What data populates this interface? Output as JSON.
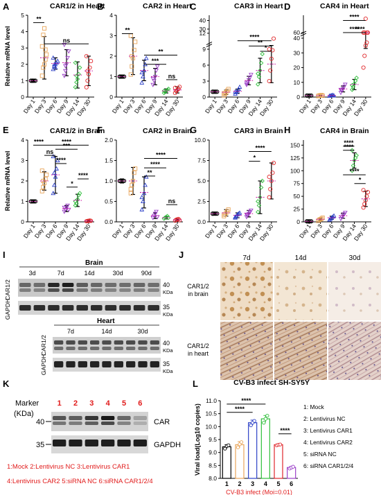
{
  "panel_letters": [
    "A",
    "B",
    "C",
    "D",
    "E",
    "F",
    "G",
    "H",
    "I",
    "J",
    "K",
    "L"
  ],
  "colors": {
    "day1": "#000000",
    "day3": "#e8a55a",
    "day6": "#2b3fc7",
    "day9": "#9b3fc9",
    "day14": "#2fbf3b",
    "day30": "#e0262a",
    "mean": "#cc1fa8",
    "red_text": "#e11b1b"
  },
  "common_x_categories": [
    "Day 1",
    "Day 3",
    "Day 6",
    "Day 9",
    "Day 14",
    "Day 30"
  ],
  "ylabel_relative": "Relative mRNA level",
  "chart_data": [
    {
      "panel": "A",
      "type": "scatter",
      "title": "CAR1/2 in Heart",
      "ylabel": "Relative mRNA level",
      "ylim": [
        0,
        5
      ],
      "yticks": [
        "0",
        "1",
        "2",
        "3",
        "4",
        "5"
      ],
      "categories": [
        "Day 1",
        "Day 3",
        "Day 6",
        "Day 9",
        "Day 14",
        "Day 30"
      ],
      "means": [
        1.0,
        2.4,
        2.05,
        2.1,
        1.35,
        1.6
      ],
      "sd": [
        0.05,
        1.3,
        0.35,
        0.8,
        0.8,
        0.9
      ],
      "points": [
        [
          1,
          1,
          1,
          1,
          1,
          1,
          1,
          1
        ],
        [
          1.3,
          1.8,
          2.0,
          2.3,
          2.6,
          3.1,
          3.8,
          4.2,
          2.9
        ],
        [
          1.7,
          1.9,
          2.0,
          2.1,
          2.2,
          2.4,
          2.0,
          1.8
        ],
        [
          1.3,
          1.6,
          2.0,
          2.4,
          2.8,
          3.2,
          1.9
        ],
        [
          0.6,
          0.9,
          1.1,
          1.4,
          1.8,
          2.1,
          1.3
        ],
        [
          0.6,
          1.0,
          1.4,
          1.8,
          2.2,
          2.5,
          1.6
        ]
      ],
      "sig": [
        {
          "from": 0,
          "to": 1,
          "label": "**",
          "y": 4.55
        },
        {
          "from": 1,
          "to": 5,
          "label": "ns",
          "y": 3.25
        }
      ]
    },
    {
      "panel": "B",
      "type": "scatter",
      "title": "CAR2 in Heart",
      "ylim": [
        0,
        4
      ],
      "yticks": [
        "0",
        "1",
        "2",
        "3",
        "4"
      ],
      "categories": [
        "Day 1",
        "Day 3",
        "Day 6",
        "Day 9",
        "Day 14",
        "Day 30"
      ],
      "means": [
        1.0,
        2.0,
        1.3,
        1.0,
        0.3,
        0.35
      ],
      "sd": [
        0.05,
        0.9,
        0.5,
        0.4,
        0.1,
        0.15
      ],
      "points": [
        [
          1,
          1,
          1,
          1,
          1,
          1,
          1
        ],
        [
          1.1,
          1.5,
          1.9,
          2.3,
          2.7,
          3.0,
          2.0
        ],
        [
          0.7,
          1.0,
          1.3,
          1.6,
          1.9,
          1.2
        ],
        [
          0.6,
          0.8,
          1.0,
          1.3,
          1.5,
          0.9
        ],
        [
          0.2,
          0.25,
          0.3,
          0.35,
          0.4,
          0.3
        ],
        [
          0.2,
          0.3,
          0.35,
          0.4,
          0.5,
          0.45
        ]
      ],
      "sig": [
        {
          "from": 0,
          "to": 1,
          "label": "**",
          "y": 3.1
        },
        {
          "from": 2,
          "to": 5,
          "label": "**",
          "y": 2.05
        },
        {
          "from": 2,
          "to": 4,
          "label": "***",
          "y": 1.6
        },
        {
          "from": 4,
          "to": 5,
          "label": "ns",
          "y": 0.85
        }
      ]
    },
    {
      "panel": "C",
      "type": "scatter",
      "title": "CAR3 in Heart",
      "ylim": [
        0,
        46
      ],
      "yticks": [
        "0",
        "3",
        "6",
        "9",
        "12",
        "30",
        "40"
      ],
      "broken_axis": true,
      "categories": [
        "Day 1",
        "Day 3",
        "Day 6",
        "Day 9",
        "Day 14",
        "Day 30"
      ],
      "means": [
        1.0,
        0.9,
        1.1,
        3.1,
        5.0,
        6.2
      ],
      "sd": [
        0.05,
        0.4,
        0.4,
        0.8,
        2.3,
        3.5
      ],
      "points": [
        [
          1,
          1,
          1,
          1,
          1,
          1
        ],
        [
          0.3,
          0.6,
          0.9,
          1.2,
          1.5,
          0.7
        ],
        [
          0.6,
          0.9,
          1.2,
          1.5,
          1.9,
          1.0
        ],
        [
          2.3,
          2.8,
          3.2,
          3.7,
          4.2,
          2.6
        ],
        [
          2.4,
          3.8,
          5.0,
          6.4,
          8.1,
          4.4
        ],
        [
          3.0,
          5.0,
          7.2,
          8.8,
          11.0,
          9.0
        ]
      ],
      "sig": [
        {
          "from": 2,
          "to": 5,
          "label": "****",
          "y": 10.6
        },
        {
          "from": 3,
          "to": 5,
          "label": "**",
          "y": 9.6
        },
        {
          "from": 4,
          "to": 5,
          "label": "*",
          "y": 8.6
        }
      ]
    },
    {
      "panel": "D",
      "type": "scatter",
      "title": "CAR4 in Heart",
      "ylim": [
        0,
        65
      ],
      "yticks": [
        "0",
        "10",
        "20",
        "30",
        "40",
        "60"
      ],
      "broken_axis": true,
      "categories": [
        "Day 1",
        "Day 3",
        "Day 6",
        "Day 9",
        "Day 14",
        "Day 30"
      ],
      "means": [
        1.0,
        1.0,
        1.1,
        5.5,
        8.5,
        45
      ],
      "sd": [
        0.05,
        0.3,
        0.3,
        2.0,
        3.5,
        12
      ],
      "points": [
        [
          1,
          1,
          1,
          1,
          1,
          1
        ],
        [
          0.7,
          1.0,
          1.2,
          1.3,
          0.9
        ],
        [
          0.8,
          1.0,
          1.2,
          1.4,
          1.0
        ],
        [
          3.0,
          4.5,
          5.5,
          7.0,
          8.5,
          5.0
        ],
        [
          5,
          7,
          9,
          11,
          13,
          8
        ],
        [
          20,
          28,
          35,
          42,
          50,
          55,
          60,
          64,
          37
        ]
      ],
      "sig": [
        {
          "from": 3,
          "to": 5,
          "label": "****",
          "y": 63.5
        },
        {
          "from": 4,
          "to": 5,
          "label": "****",
          "y": 59.5
        },
        {
          "from": 3,
          "to": 5,
          "label": "****",
          "y": 55.5
        }
      ]
    },
    {
      "panel": "E",
      "type": "scatter",
      "title": "CAR1/2 in Brain",
      "ylabel": "Relative mRNA level",
      "ylim": [
        0,
        4
      ],
      "yticks": [
        "0",
        "1",
        "2",
        "3",
        "4"
      ],
      "categories": [
        "Day 1",
        "Day 3",
        "Day 6",
        "Day 9",
        "Day 14",
        "Day 30"
      ],
      "means": [
        1.0,
        2.0,
        2.3,
        0.65,
        1.05,
        0.05
      ],
      "sd": [
        0.05,
        0.45,
        0.9,
        0.15,
        0.3,
        0.02
      ],
      "points": [
        [
          1,
          1,
          1,
          1,
          1,
          1
        ],
        [
          1.5,
          1.7,
          1.9,
          2.1,
          2.3,
          2.5,
          2.0
        ],
        [
          1.4,
          1.8,
          2.2,
          2.6,
          3.0,
          3.2,
          2.4
        ],
        [
          0.5,
          0.6,
          0.7,
          0.8,
          0.6,
          0.7
        ],
        [
          0.8,
          0.9,
          1.1,
          1.3,
          1.4,
          1.0
        ],
        [
          0.03,
          0.04,
          0.05,
          0.06,
          0.05
        ]
      ],
      "sig": [
        {
          "from": 0,
          "to": 1,
          "label": "****",
          "y": 3.75
        },
        {
          "from": 1,
          "to": 2,
          "label": "ns",
          "y": 3.25
        },
        {
          "from": 2,
          "to": 3,
          "label": "****",
          "y": 2.85
        },
        {
          "from": 1,
          "to": 5,
          "label": "****",
          "y": 3.75
        },
        {
          "from": 2,
          "to": 4,
          "label": "***",
          "y": 3.55
        },
        {
          "from": 3,
          "to": 4,
          "label": "*",
          "y": 1.7
        },
        {
          "from": 4,
          "to": 5,
          "label": "****",
          "y": 2.1
        }
      ]
    },
    {
      "panel": "F",
      "type": "scatter",
      "title": "CAR2 in Brain",
      "ylim": [
        0,
        2.0
      ],
      "yticks": [
        "0.0",
        "0.5",
        "1.0",
        "1.5",
        "2.0"
      ],
      "categories": [
        "Day 1",
        "Day 3",
        "Day 6",
        "Day 9",
        "Day 14",
        "Day 30"
      ],
      "means": [
        1.0,
        1.0,
        0.72,
        0.15,
        0.1,
        0.05
      ],
      "sd": [
        0.05,
        0.33,
        0.38,
        0.07,
        0.03,
        0.02
      ],
      "points": [
        [
          1,
          1,
          1,
          1,
          1,
          1
        ],
        [
          0.7,
          0.9,
          1.0,
          1.2,
          1.3,
          0.8
        ],
        [
          0.3,
          0.5,
          0.7,
          0.9,
          1.1,
          0.6
        ],
        [
          0.1,
          0.15,
          0.2,
          0.25,
          0.12
        ],
        [
          0.08,
          0.1,
          0.12,
          0.14,
          0.1
        ],
        [
          0.03,
          0.05,
          0.06,
          0.07,
          0.04
        ]
      ],
      "sig": [
        {
          "from": 2,
          "to": 5,
          "label": "****",
          "y": 1.55
        },
        {
          "from": 2,
          "to": 4,
          "label": "****",
          "y": 1.32
        },
        {
          "from": 2,
          "to": 3,
          "label": "**",
          "y": 1.12
        },
        {
          "from": 4,
          "to": 5,
          "label": "ns",
          "y": 0.42
        }
      ]
    },
    {
      "panel": "G",
      "type": "scatter",
      "title": "CAR3 in Brain",
      "ylim": [
        0,
        10
      ],
      "yticks": [
        "0.0",
        "2.5",
        "5.0",
        "7.5",
        "10.0"
      ],
      "categories": [
        "Day 1",
        "Day 3",
        "Day 6",
        "Day 9",
        "Day 14",
        "Day 30"
      ],
      "means": [
        1.0,
        1.1,
        0.8,
        1.0,
        3.0,
        5.0
      ],
      "sd": [
        0.05,
        0.4,
        0.3,
        0.4,
        2.0,
        2.2
      ],
      "points": [
        [
          1,
          1,
          1,
          1,
          1,
          1
        ],
        [
          0.7,
          0.9,
          1.1,
          1.3,
          1.5,
          0.9
        ],
        [
          0.5,
          0.7,
          0.9,
          1.0,
          1.1,
          0.6
        ],
        [
          0.6,
          0.8,
          1.0,
          1.2,
          1.4,
          0.9
        ],
        [
          1.2,
          2.0,
          3.0,
          4.2,
          5.0,
          2.5
        ],
        [
          3.0,
          4.0,
          5.0,
          6.0,
          7.2,
          5.5
        ]
      ],
      "sig": [
        {
          "from": 3,
          "to": 5,
          "label": "****",
          "y": 8.6
        },
        {
          "from": 3,
          "to": 4,
          "label": "*",
          "y": 7.4
        }
      ]
    },
    {
      "panel": "H",
      "type": "scatter",
      "title": "CAR4 in Brain",
      "ylim": [
        0,
        160
      ],
      "yticks": [
        "0",
        "25",
        "50",
        "75",
        "100",
        "125",
        "150"
      ],
      "categories": [
        "Day 1",
        "Day 3",
        "Day 6",
        "Day 9",
        "Day 14",
        "Day 30"
      ],
      "means": [
        1.0,
        5.0,
        8.0,
        12.0,
        120,
        45
      ],
      "sd": [
        0.05,
        2.0,
        3.0,
        5.0,
        15,
        15
      ],
      "points": [
        [
          1,
          1,
          1,
          1,
          1,
          1
        ],
        [
          2,
          4,
          5,
          6,
          8
        ],
        [
          4,
          6,
          8,
          10,
          12
        ],
        [
          6,
          9,
          12,
          15,
          18
        ],
        [
          100,
          110,
          120,
          125,
          130,
          140
        ],
        [
          28,
          35,
          42,
          50,
          58,
          62
        ]
      ],
      "sig": [
        {
          "from": 3,
          "to": 4,
          "label": "****",
          "y": 148
        },
        {
          "from": 3,
          "to": 4,
          "label": "****",
          "y": 140
        },
        {
          "from": 3,
          "to": 5,
          "label": "****",
          "y": 92
        },
        {
          "from": 4,
          "to": 5,
          "label": "*",
          "y": 75
        }
      ]
    },
    {
      "panel": "L",
      "type": "bar",
      "title": "CV-B3 infect SH-SY5Y",
      "xlabel": "CV-B3 infect (Moi=0.01)",
      "ylabel": "Viral load(Log10 copies)",
      "ylim": [
        8,
        11
      ],
      "yticks": [
        "8.0",
        "8.5",
        "9.0",
        "9.5",
        "10.0",
        "10.5",
        "11.0"
      ],
      "categories": [
        "1",
        "2",
        "3",
        "4",
        "5",
        "6"
      ],
      "values": [
        9.22,
        9.3,
        10.15,
        10.3,
        9.3,
        8.42
      ],
      "sd": [
        0.08,
        0.12,
        0.1,
        0.13,
        0.02,
        0.04
      ],
      "points": [
        [
          9.15,
          9.25,
          9.28
        ],
        [
          9.2,
          9.32,
          9.4
        ],
        [
          10.05,
          10.15,
          10.22
        ],
        [
          10.15,
          10.3,
          10.42
        ],
        [
          9.28,
          9.3,
          9.31
        ],
        [
          8.38,
          8.42,
          8.45
        ]
      ],
      "bar_colors": [
        "#000000",
        "#e8a55a",
        "#2b3fc7",
        "#2fbf3b",
        "#e0262a",
        "#9b3fc9"
      ],
      "legend": [
        "1: Mock",
        "2: Lentivirus NC",
        "3: Lentivirus CAR1",
        "4: Lentivirus CAR2",
        "5: siRNA NC",
        "6: siRNA CAR1/2/4"
      ],
      "sig": [
        {
          "from": 0,
          "to": 3,
          "label": "****",
          "y": 10.87
        },
        {
          "from": 0,
          "to": 2,
          "label": "****",
          "y": 10.55
        },
        {
          "from": 4,
          "to": 5,
          "label": "****",
          "y": 9.72
        }
      ]
    }
  ],
  "panel_I": {
    "brain_label": "Brain",
    "heart_label": "Heart",
    "brain_timepoints": [
      "3d",
      "7d",
      "14d",
      "30d",
      "90d"
    ],
    "heart_timepoints": [
      "7d",
      "14d",
      "30d"
    ],
    "row_car": "CAR1/2",
    "row_gapdh": "GAPDH",
    "mw_40": "40",
    "mw_35": "35",
    "kda": "KDa"
  },
  "panel_J": {
    "timepoints": [
      "7d",
      "14d",
      "30d"
    ],
    "row_brain": "CAR1/2 in brain",
    "row_heart": "CAR1/2 in heart"
  },
  "panel_K": {
    "marker": "Marker",
    "marker_unit": "(KDa)",
    "lanes": [
      "1",
      "2",
      "3",
      "4",
      "5",
      "6"
    ],
    "mw_40": "40",
    "mw_35": "35",
    "band_car": "CAR",
    "band_gapdh": "GAPDH",
    "legend_line1": "1:Mock 2:Lentivirus NC 3:Lentivirus CAR1",
    "legend_line2": "4:Lentivirus CAR2 5:siRNA NC 6:siRNA CAR1/2/4",
    "car_band_intensity": [
      0.65,
      0.6,
      0.8,
      0.95,
      0.55,
      0.25
    ]
  }
}
